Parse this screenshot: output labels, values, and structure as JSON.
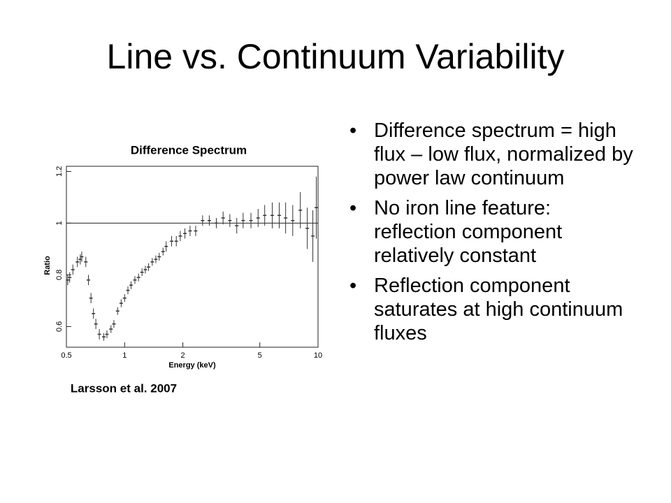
{
  "title": "Line vs. Continuum Variability",
  "bullets": [
    "Difference spectrum = high flux – low flux, normalized by power law continuum",
    "No iron line feature: reflection component relatively constant",
    "Reflection component saturates at high continuum fluxes"
  ],
  "chart_data": {
    "type": "scatter",
    "title": "Difference Spectrum",
    "annotation": "Larsson et al. 2007",
    "xlabel": "Energy (keV)",
    "ylabel": "Ratio",
    "xscale": "log",
    "color": "#333333",
    "xlim": [
      0.5,
      10
    ],
    "ylim": [
      0.52,
      1.22
    ],
    "xticks": [
      0.5,
      1,
      2,
      5,
      10
    ],
    "yticks": [
      0.6,
      0.8,
      1,
      1.2
    ],
    "hline": 1,
    "x": [
      0.508,
      0.52,
      0.54,
      0.57,
      0.59,
      0.6,
      0.63,
      0.65,
      0.67,
      0.69,
      0.71,
      0.74,
      0.78,
      0.81,
      0.85,
      0.88,
      0.92,
      0.96,
      1.0,
      1.04,
      1.08,
      1.13,
      1.18,
      1.23,
      1.28,
      1.33,
      1.39,
      1.45,
      1.51,
      1.58,
      1.64,
      1.75,
      1.85,
      1.94,
      2.05,
      2.18,
      2.33,
      2.53,
      2.74,
      2.98,
      3.23,
      3.5,
      3.8,
      4.1,
      4.5,
      4.9,
      5.3,
      5.8,
      6.3,
      6.8,
      7.4,
      8.1,
      8.8,
      9.4,
      9.8
    ],
    "values": [
      0.78,
      0.79,
      0.82,
      0.85,
      0.86,
      0.87,
      0.85,
      0.78,
      0.71,
      0.65,
      0.61,
      0.57,
      0.56,
      0.57,
      0.59,
      0.61,
      0.66,
      0.69,
      0.71,
      0.74,
      0.76,
      0.78,
      0.79,
      0.81,
      0.82,
      0.83,
      0.85,
      0.86,
      0.87,
      0.89,
      0.91,
      0.93,
      0.93,
      0.95,
      0.96,
      0.97,
      0.97,
      1.01,
      1.01,
      1.0,
      1.02,
      1.01,
      0.99,
      1.01,
      1.01,
      1.02,
      1.03,
      1.03,
      1.03,
      1.02,
      1.01,
      1.05,
      0.98,
      0.95,
      1.06
    ],
    "errors": [
      0.02,
      0.02,
      0.02,
      0.02,
      0.02,
      0.02,
      0.02,
      0.02,
      0.02,
      0.02,
      0.02,
      0.02,
      0.015,
      0.015,
      0.015,
      0.015,
      0.015,
      0.015,
      0.015,
      0.015,
      0.015,
      0.015,
      0.015,
      0.015,
      0.015,
      0.015,
      0.015,
      0.015,
      0.015,
      0.015,
      0.02,
      0.02,
      0.02,
      0.02,
      0.02,
      0.02,
      0.02,
      0.02,
      0.02,
      0.02,
      0.025,
      0.025,
      0.03,
      0.03,
      0.03,
      0.035,
      0.04,
      0.05,
      0.05,
      0.06,
      0.06,
      0.07,
      0.08,
      0.1,
      0.12
    ]
  }
}
